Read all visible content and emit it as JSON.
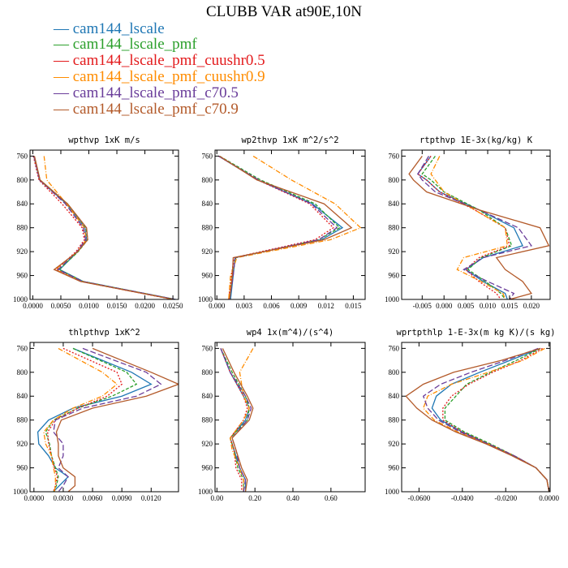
{
  "title": "CLUBB VAR at90E,10N",
  "legend": [
    {
      "label": "— cam144_lscale",
      "color": "#1f77b4"
    },
    {
      "label": "— cam144_lscale_pmf",
      "color": "#2ca02c"
    },
    {
      "label": "— cam144_lscale_pmf_cuushr0.5",
      "color": "#e31a1c"
    },
    {
      "label": "— cam144_lscale_pmf_cuushr0.9",
      "color": "#ff8c00"
    },
    {
      "label": "— cam144_lscale_pmf_c70.5",
      "color": "#6a3d9a"
    },
    {
      "label": "— cam144_lscale_pmf_c70.9",
      "color": "#b35a2a"
    }
  ],
  "series_styles": [
    {
      "name": "cam144_lscale",
      "color": "#1f77b4",
      "dash": ""
    },
    {
      "name": "cam144_lscale_pmf",
      "color": "#2ca02c",
      "dash": "4,2"
    },
    {
      "name": "cam144_lscale_pmf_cuushr0.5",
      "color": "#e31a1c",
      "dash": "2,2"
    },
    {
      "name": "cam144_lscale_pmf_cuushr0.9",
      "color": "#ff8c00",
      "dash": "6,2,1,2"
    },
    {
      "name": "cam144_lscale_pmf_c70.5",
      "color": "#6a3d9a",
      "dash": "7,3"
    },
    {
      "name": "cam144_lscale_pmf_c70.9",
      "color": "#b35a2a",
      "dash": ""
    }
  ],
  "chart_data": [
    {
      "type": "line",
      "title": "wpthvp  1xK m/s",
      "xlim": [
        -0.0005,
        0.026
      ],
      "ylim": [
        750,
        1000
      ],
      "xticks": [
        0,
        0.005,
        0.01,
        0.015,
        0.02,
        0.025
      ],
      "xtick_labels": [
        "0.0000",
        "0.0050",
        "0.0100",
        "0.0150",
        "0.0200",
        "0.0250"
      ],
      "yticks": [
        760,
        800,
        840,
        880,
        920,
        960,
        1000
      ],
      "y": [
        760,
        800,
        840,
        880,
        900,
        920,
        950,
        970,
        1000
      ],
      "series": [
        {
          "name": "cam144_lscale",
          "values": [
            0.0002,
            0.0012,
            0.006,
            0.0093,
            0.0096,
            0.008,
            0.0048,
            0.009,
            0.0255
          ]
        },
        {
          "name": "cam144_lscale_pmf",
          "values": [
            0.0002,
            0.0013,
            0.0062,
            0.0095,
            0.0098,
            0.0081,
            0.0047,
            0.009,
            0.0253
          ]
        },
        {
          "name": "cam144_lscale_pmf_cuushr0.5",
          "values": [
            0.0001,
            0.0011,
            0.0052,
            0.0088,
            0.0092,
            0.0077,
            0.0042,
            0.0086,
            0.025
          ]
        },
        {
          "name": "cam144_lscale_pmf_cuushr0.9",
          "values": [
            0.002,
            0.0025,
            0.006,
            0.0092,
            0.0095,
            0.008,
            0.004,
            0.0088,
            0.0252
          ]
        },
        {
          "name": "cam144_lscale_pmf_c70.5",
          "values": [
            0.0002,
            0.0012,
            0.0058,
            0.009,
            0.0094,
            0.0079,
            0.0045,
            0.0089,
            0.0254
          ]
        },
        {
          "name": "cam144_lscale_pmf_c70.9",
          "values": [
            0.0003,
            0.0013,
            0.0062,
            0.0096,
            0.0098,
            0.008,
            0.0038,
            0.0085,
            0.0251
          ]
        }
      ]
    },
    {
      "type": "line",
      "title": "wp2thvp  1xK m^2/s^2",
      "xlim": [
        -0.0002,
        0.0163
      ],
      "ylim": [
        750,
        1000
      ],
      "xticks": [
        0,
        0.003,
        0.006,
        0.009,
        0.012,
        0.015
      ],
      "xtick_labels": [
        "0.000",
        "0.003",
        "0.006",
        "0.009",
        "0.012",
        "0.015"
      ],
      "yticks": [
        760,
        800,
        840,
        880,
        920,
        960,
        1000
      ],
      "y": [
        760,
        800,
        840,
        880,
        900,
        930,
        960,
        1000
      ],
      "series": [
        {
          "name": "cam144_lscale",
          "values": [
            0.0002,
            0.0045,
            0.0105,
            0.0138,
            0.0115,
            0.002,
            0.0018,
            0.0015
          ]
        },
        {
          "name": "cam144_lscale_pmf",
          "values": [
            0.0003,
            0.0048,
            0.0108,
            0.0135,
            0.0112,
            0.0021,
            0.0017,
            0.0014
          ]
        },
        {
          "name": "cam144_lscale_pmf_cuushr0.5",
          "values": [
            0.0002,
            0.0045,
            0.0102,
            0.0128,
            0.0108,
            0.0019,
            0.0016,
            0.0013
          ]
        },
        {
          "name": "cam144_lscale_pmf_cuushr0.9",
          "values": [
            0.004,
            0.0082,
            0.013,
            0.0158,
            0.0125,
            0.0022,
            0.0015,
            0.0013
          ]
        },
        {
          "name": "cam144_lscale_pmf_c70.5",
          "values": [
            0.0002,
            0.0046,
            0.0104,
            0.0132,
            0.0112,
            0.002,
            0.0018,
            0.0014
          ]
        },
        {
          "name": "cam144_lscale_pmf_c70.9",
          "values": [
            0.0003,
            0.0044,
            0.0118,
            0.0148,
            0.0118,
            0.0018,
            0.0017,
            0.0014
          ]
        }
      ]
    },
    {
      "type": "line",
      "title": "rtpthvp  1E-3x(kg/kg) K",
      "xlim": [
        -0.0097,
        0.0243
      ],
      "ylim": [
        750,
        1000
      ],
      "xticks": [
        -0.005,
        0,
        0.005,
        0.01,
        0.015,
        0.02
      ],
      "xtick_labels": [
        "-0.005",
        "0.000",
        "0.005",
        "0.010",
        "0.015",
        "0.020"
      ],
      "yticks": [
        760,
        800,
        840,
        880,
        920,
        960,
        1000
      ],
      "y": [
        760,
        790,
        800,
        820,
        850,
        880,
        910,
        930,
        950,
        970,
        990,
        1000
      ],
      "series": [
        {
          "name": "cam144_lscale",
          "values": [
            -0.003,
            -0.006,
            -0.004,
            -0.001,
            0.008,
            0.016,
            0.018,
            0.009,
            0.005,
            0.009,
            0.014,
            0.0145
          ]
        },
        {
          "name": "cam144_lscale_pmf",
          "values": [
            -0.002,
            -0.005,
            -0.003,
            0.0,
            0.008,
            0.014,
            0.0155,
            0.0085,
            0.0055,
            0.0095,
            0.013,
            0.014
          ]
        },
        {
          "name": "cam144_lscale_pmf_cuushr0.5",
          "values": [
            -0.003,
            -0.006,
            -0.004,
            -0.001,
            0.007,
            0.014,
            0.015,
            0.008,
            0.005,
            0.008,
            0.012,
            0.013
          ]
        },
        {
          "name": "cam144_lscale_pmf_cuushr0.9",
          "values": [
            -0.001,
            -0.003,
            -0.002,
            0.0,
            0.007,
            0.014,
            0.0145,
            0.0045,
            0.003,
            0.0085,
            0.0135,
            0.014
          ]
        },
        {
          "name": "cam144_lscale_pmf_c70.5",
          "values": [
            -0.0035,
            -0.006,
            -0.005,
            -0.002,
            0.008,
            0.017,
            0.02,
            0.009,
            0.0045,
            0.01,
            0.016,
            0.015
          ]
        },
        {
          "name": "cam144_lscale_pmf_c70.9",
          "values": [
            -0.005,
            -0.008,
            -0.007,
            -0.004,
            0.008,
            0.022,
            0.024,
            0.012,
            0.014,
            0.018,
            0.02,
            0.015
          ]
        }
      ]
    },
    {
      "type": "line",
      "title": "thlpthvp  1xK^2",
      "xlim": [
        -0.0004,
        0.0148
      ],
      "ylim": [
        750,
        1000
      ],
      "xticks": [
        0,
        0.003,
        0.006,
        0.009,
        0.012
      ],
      "xtick_labels": [
        "0.0000",
        "0.0030",
        "0.0060",
        "0.0090",
        "0.0120"
      ],
      "yticks": [
        760,
        800,
        840,
        880,
        920,
        960,
        1000
      ],
      "y": [
        760,
        800,
        820,
        840,
        860,
        880,
        900,
        920,
        940,
        960,
        975,
        990,
        1000
      ],
      "series": [
        {
          "name": "cam144_lscale",
          "values": [
            0.004,
            0.01,
            0.012,
            0.009,
            0.004,
            0.0015,
            0.0004,
            0.0005,
            0.0015,
            0.0022,
            0.0035,
            0.0026,
            0.002
          ]
        },
        {
          "name": "cam144_lscale_pmf",
          "values": [
            0.004,
            0.0095,
            0.0105,
            0.008,
            0.0045,
            0.002,
            0.0012,
            0.0016,
            0.0018,
            0.0022,
            0.0025,
            0.0023,
            0.002
          ]
        },
        {
          "name": "cam144_lscale_pmf_cuushr0.5",
          "values": [
            0.003,
            0.0085,
            0.009,
            0.0075,
            0.0045,
            0.0022,
            0.0014,
            0.0015,
            0.0018,
            0.0021,
            0.0024,
            0.0022,
            0.002
          ]
        },
        {
          "name": "cam144_lscale_pmf_cuushr0.9",
          "values": [
            0.0025,
            0.007,
            0.0085,
            0.007,
            0.004,
            0.002,
            0.001,
            0.0012,
            0.0018,
            0.002,
            0.0022,
            0.0022,
            0.0021
          ]
        },
        {
          "name": "cam144_lscale_pmf_c70.5",
          "values": [
            0.005,
            0.0115,
            0.013,
            0.0105,
            0.005,
            0.0022,
            0.002,
            0.003,
            0.003,
            0.0025,
            0.0035,
            0.003,
            0.0025
          ]
        },
        {
          "name": "cam144_lscale_pmf_c70.9",
          "values": [
            0.006,
            0.012,
            0.0148,
            0.0115,
            0.006,
            0.0028,
            0.0023,
            0.0025,
            0.0025,
            0.003,
            0.0042,
            0.0042,
            0.0035
          ]
        }
      ]
    },
    {
      "type": "line",
      "title": "wp4  1x(m^4)/(s^4)",
      "xlim": [
        -0.01,
        0.78
      ],
      "ylim": [
        750,
        1000
      ],
      "xticks": [
        0,
        0.2,
        0.4,
        0.6
      ],
      "xtick_labels": [
        "0.00",
        "0.20",
        "0.40",
        "0.60"
      ],
      "yticks": [
        760,
        800,
        840,
        880,
        920,
        960,
        1000
      ],
      "y": [
        760,
        800,
        840,
        860,
        880,
        910,
        930,
        960,
        980,
        1000
      ],
      "series": [
        {
          "name": "cam144_lscale",
          "values": [
            0.02,
            0.07,
            0.14,
            0.17,
            0.15,
            0.07,
            0.09,
            0.12,
            0.15,
            0.15
          ]
        },
        {
          "name": "cam144_lscale_pmf",
          "values": [
            0.02,
            0.08,
            0.15,
            0.17,
            0.16,
            0.07,
            0.09,
            0.11,
            0.14,
            0.14
          ]
        },
        {
          "name": "cam144_lscale_pmf_cuushr0.5",
          "values": [
            0.02,
            0.07,
            0.14,
            0.16,
            0.14,
            0.07,
            0.09,
            0.1,
            0.13,
            0.13
          ]
        },
        {
          "name": "cam144_lscale_pmf_cuushr0.9",
          "values": [
            0.19,
            0.12,
            0.14,
            0.17,
            0.14,
            0.07,
            0.08,
            0.12,
            0.14,
            0.14
          ]
        },
        {
          "name": "cam144_lscale_pmf_c70.5",
          "values": [
            0.02,
            0.07,
            0.15,
            0.18,
            0.16,
            0.08,
            0.1,
            0.12,
            0.15,
            0.14
          ]
        },
        {
          "name": "cam144_lscale_pmf_c70.9",
          "values": [
            0.03,
            0.09,
            0.16,
            0.19,
            0.17,
            0.08,
            0.1,
            0.13,
            0.16,
            0.15
          ]
        }
      ]
    },
    {
      "type": "line",
      "title": "wprtpthlp  1-E-3x(m kg K)/(s kg)",
      "xlim": [
        -0.068,
        0.0005
      ],
      "ylim": [
        750,
        1000
      ],
      "xticks": [
        -0.06,
        -0.04,
        -0.02,
        0
      ],
      "xtick_labels": [
        "-0.0600",
        "-0.0400",
        "-0.0200",
        "0.0000"
      ],
      "yticks": [
        760,
        800,
        840,
        880,
        920,
        960,
        1000
      ],
      "y": [
        760,
        780,
        800,
        820,
        840,
        860,
        880,
        900,
        920,
        940,
        960,
        980,
        1000
      ],
      "series": [
        {
          "name": "cam144_lscale",
          "values": [
            -0.004,
            -0.018,
            -0.032,
            -0.045,
            -0.052,
            -0.054,
            -0.05,
            -0.04,
            -0.028,
            -0.016,
            -0.006,
            -0.001,
            0.0
          ]
        },
        {
          "name": "cam144_lscale_pmf",
          "values": [
            -0.004,
            -0.015,
            -0.027,
            -0.038,
            -0.043,
            -0.048,
            -0.048,
            -0.039,
            -0.027,
            -0.016,
            -0.006,
            -0.001,
            0.0
          ]
        },
        {
          "name": "cam144_lscale_pmf_cuushr0.5",
          "values": [
            -0.003,
            -0.013,
            -0.026,
            -0.037,
            -0.045,
            -0.049,
            -0.049,
            -0.04,
            -0.028,
            -0.016,
            -0.006,
            -0.001,
            0.0
          ]
        },
        {
          "name": "cam144_lscale_pmf_cuushr0.9",
          "values": [
            -0.002,
            -0.012,
            -0.028,
            -0.045,
            -0.056,
            -0.058,
            -0.053,
            -0.042,
            -0.028,
            -0.016,
            -0.006,
            -0.001,
            0.0
          ]
        },
        {
          "name": "cam144_lscale_pmf_c70.5",
          "values": [
            -0.005,
            -0.02,
            -0.036,
            -0.05,
            -0.058,
            -0.056,
            -0.051,
            -0.041,
            -0.028,
            -0.016,
            -0.006,
            -0.001,
            0.0
          ]
        },
        {
          "name": "cam144_lscale_pmf_c70.9",
          "values": [
            -0.004,
            -0.022,
            -0.044,
            -0.058,
            -0.066,
            -0.061,
            -0.054,
            -0.043,
            -0.029,
            -0.017,
            -0.006,
            -0.001,
            0.0
          ]
        }
      ]
    }
  ]
}
